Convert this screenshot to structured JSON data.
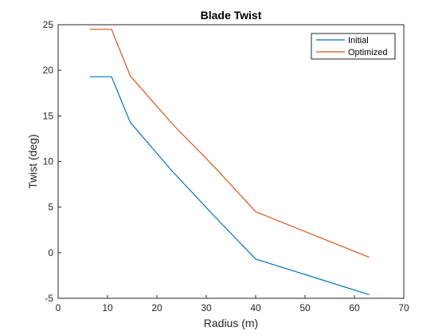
{
  "chart_data": {
    "type": "line",
    "title": "Blade Twist",
    "xlabel": "Radius (m)",
    "ylabel": "Twist (deg)",
    "xlim": [
      0,
      70
    ],
    "ylim": [
      -5,
      25
    ],
    "xticks": [
      0,
      10,
      20,
      30,
      40,
      50,
      60,
      70
    ],
    "yticks": [
      -5,
      0,
      5,
      10,
      15,
      20,
      25
    ],
    "grid": false,
    "legend_position": "top-right",
    "series": [
      {
        "name": "Initial",
        "color": "#0072BD",
        "x": [
          6.4,
          10.8,
          14.6,
          23.0,
          32.0,
          40.0,
          63.0
        ],
        "y": [
          19.3,
          19.3,
          14.3,
          9.0,
          3.8,
          -0.7,
          -4.6
        ]
      },
      {
        "name": "Optimized",
        "color": "#D95319",
        "x": [
          6.4,
          10.8,
          14.6,
          23.0,
          32.0,
          40.0,
          63.0
        ],
        "y": [
          24.5,
          24.5,
          19.4,
          14.2,
          9.2,
          4.5,
          -0.5
        ]
      }
    ]
  }
}
